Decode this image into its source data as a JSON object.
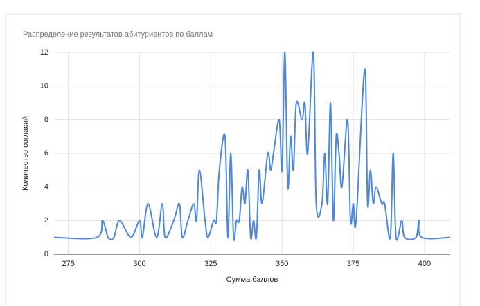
{
  "chart_data": {
    "type": "line",
    "title": "Распределение результатов абитуриентов по баллам",
    "x_label": "Сумма баллов",
    "y_label": "Количество согласий",
    "smooth": true,
    "grid": true,
    "xlim": [
      270,
      409
    ],
    "xticks": [
      275,
      300,
      325,
      350,
      375,
      400
    ],
    "ylim": [
      0,
      12
    ],
    "yticks": [
      0,
      2,
      4,
      6,
      8,
      10,
      12
    ],
    "x": [
      270,
      285,
      287,
      289,
      291,
      293,
      297,
      300,
      301,
      303,
      306,
      308,
      309,
      312,
      314,
      315,
      317,
      319,
      320,
      321,
      323,
      324,
      326,
      327,
      328,
      330,
      331,
      332,
      333,
      334,
      335,
      336,
      337,
      338,
      339,
      340,
      341,
      342,
      343,
      345,
      346,
      347,
      349,
      350,
      351,
      352,
      353,
      354,
      355,
      357,
      358,
      359,
      361,
      362,
      364,
      365,
      366,
      367,
      368,
      369,
      370,
      371,
      373,
      374,
      375,
      376,
      379,
      380,
      381,
      382,
      383,
      385,
      386,
      388,
      389,
      390,
      392,
      393,
      397,
      398,
      399,
      409
    ],
    "series": [
      {
        "color": "#4a86e8",
        "values": [
          1,
          1,
          2,
          1,
          1,
          2,
          1,
          2,
          1,
          3,
          1,
          3,
          1,
          2,
          3,
          1,
          2,
          3,
          2,
          5,
          2,
          1,
          2,
          2,
          5,
          7,
          1,
          6,
          1,
          2,
          2,
          4,
          3,
          5,
          1,
          2,
          1,
          5,
          3,
          6,
          5,
          6,
          8,
          5,
          12,
          4,
          7,
          5,
          9,
          8,
          9,
          6,
          12,
          3,
          3,
          6,
          3,
          9,
          2,
          7,
          6,
          4,
          8,
          2,
          3,
          2,
          11,
          3,
          5,
          3,
          4,
          3,
          3,
          1,
          6,
          1,
          2,
          1,
          1,
          2,
          1,
          1
        ]
      }
    ]
  }
}
